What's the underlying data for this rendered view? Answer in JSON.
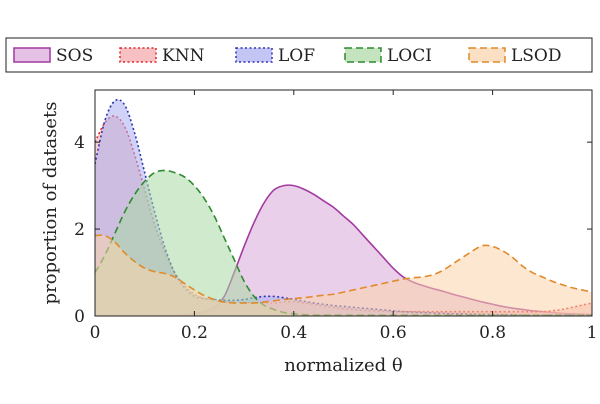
{
  "chart_data": {
    "type": "area",
    "xlabel": "normalized θ",
    "ylabel": "proportion of datasets",
    "xlim": [
      0,
      1
    ],
    "ylim": [
      0,
      5.2
    ],
    "x_ticks": [
      "0",
      "0.2",
      "0.4",
      "0.6",
      "0.8",
      "1"
    ],
    "y_ticks": [
      "0",
      "2",
      "4"
    ],
    "x_tick_values": [
      0,
      0.2,
      0.4,
      0.6,
      0.8,
      1
    ],
    "y_tick_values": [
      0,
      2,
      4
    ],
    "legend_position": "top",
    "grid": false,
    "x": [
      0,
      0.02,
      0.04,
      0.06,
      0.08,
      0.1,
      0.12,
      0.14,
      0.16,
      0.18,
      0.2,
      0.22,
      0.24,
      0.26,
      0.28,
      0.3,
      0.32,
      0.34,
      0.36,
      0.38,
      0.4,
      0.42,
      0.44,
      0.46,
      0.48,
      0.5,
      0.52,
      0.54,
      0.56,
      0.58,
      0.6,
      0.62,
      0.64,
      0.66,
      0.68,
      0.7,
      0.72,
      0.74,
      0.76,
      0.78,
      0.8,
      0.82,
      0.84,
      0.86,
      0.88,
      0.9,
      0.92,
      0.94,
      0.96,
      0.98,
      1
    ],
    "series": [
      {
        "name": "SOS",
        "line_color": "#a23aa0",
        "fill_color": "#d9a7da",
        "dash": "solid",
        "values": [
          0,
          0,
          0,
          0,
          0,
          0,
          0,
          0,
          0.01,
          0.02,
          0.05,
          0.1,
          0.2,
          0.45,
          1.0,
          1.6,
          2.15,
          2.6,
          2.9,
          3.0,
          3.0,
          2.92,
          2.8,
          2.65,
          2.5,
          2.3,
          2.1,
          1.85,
          1.6,
          1.35,
          1.1,
          0.9,
          0.78,
          0.7,
          0.63,
          0.57,
          0.5,
          0.44,
          0.38,
          0.32,
          0.27,
          0.22,
          0.18,
          0.15,
          0.12,
          0.1,
          0.08,
          0.06,
          0.05,
          0.04,
          0.03
        ]
      },
      {
        "name": "KNN",
        "line_color": "#e0262e",
        "fill_color": "#f4a5a8",
        "dash": "dotted",
        "values": [
          4.0,
          4.45,
          4.6,
          4.35,
          3.7,
          2.9,
          2.1,
          1.5,
          1.0,
          0.7,
          0.5,
          0.4,
          0.35,
          0.32,
          0.3,
          0.3,
          0.3,
          0.3,
          0.3,
          0.32,
          0.33,
          0.3,
          0.27,
          0.23,
          0.2,
          0.17,
          0.15,
          0.13,
          0.12,
          0.11,
          0.1,
          0.1,
          0.1,
          0.1,
          0.1,
          0.1,
          0.1,
          0.1,
          0.1,
          0.1,
          0.1,
          0.1,
          0.1,
          0.1,
          0.1,
          0.1,
          0.12,
          0.15,
          0.2,
          0.25,
          0.3
        ]
      },
      {
        "name": "LOF",
        "line_color": "#2e35b0",
        "fill_color": "#a9aef0",
        "dash": "dotted",
        "values": [
          3.5,
          4.5,
          4.95,
          4.85,
          4.2,
          3.3,
          2.4,
          1.6,
          1.0,
          0.65,
          0.45,
          0.4,
          0.38,
          0.36,
          0.36,
          0.38,
          0.42,
          0.45,
          0.45,
          0.42,
          0.38,
          0.34,
          0.3,
          0.27,
          0.24,
          0.22,
          0.2,
          0.18,
          0.16,
          0.14,
          0.12,
          0.1,
          0.09,
          0.08,
          0.07,
          0.06,
          0.05,
          0.05,
          0.04,
          0.04,
          0.03,
          0.03,
          0.03,
          0.02,
          0.02,
          0.02,
          0.02,
          0.02,
          0.02,
          0.02,
          0.02
        ]
      },
      {
        "name": "LOCI",
        "line_color": "#2f8a2f",
        "fill_color": "#a9d9a4",
        "dash": "dashed",
        "values": [
          1.0,
          1.4,
          1.9,
          2.4,
          2.8,
          3.1,
          3.3,
          3.35,
          3.3,
          3.2,
          3.0,
          2.7,
          2.3,
          1.8,
          1.3,
          0.8,
          0.45,
          0.25,
          0.15,
          0.08,
          0.05,
          0.03,
          0.02,
          0.02,
          0.02,
          0.02,
          0.02,
          0.02,
          0.02,
          0.02,
          0.02,
          0.02,
          0.02,
          0.02,
          0.02,
          0.02,
          0.02,
          0.02,
          0.02,
          0.02,
          0.02,
          0.02,
          0.02,
          0.02,
          0.02,
          0.02,
          0.02,
          0.02,
          0.02,
          0.02,
          0.02
        ]
      },
      {
        "name": "LSOD",
        "line_color": "#e08a2a",
        "fill_color": "#fbd3aa",
        "dash": "dashed",
        "values": [
          1.85,
          1.85,
          1.7,
          1.45,
          1.25,
          1.1,
          1.02,
          0.98,
          0.9,
          0.75,
          0.6,
          0.47,
          0.38,
          0.32,
          0.3,
          0.3,
          0.3,
          0.32,
          0.35,
          0.38,
          0.4,
          0.42,
          0.45,
          0.48,
          0.5,
          0.55,
          0.6,
          0.65,
          0.7,
          0.75,
          0.8,
          0.85,
          0.88,
          0.9,
          0.95,
          1.05,
          1.2,
          1.35,
          1.5,
          1.62,
          1.6,
          1.5,
          1.35,
          1.15,
          1.0,
          0.9,
          0.8,
          0.72,
          0.65,
          0.6,
          0.55
        ]
      }
    ]
  }
}
